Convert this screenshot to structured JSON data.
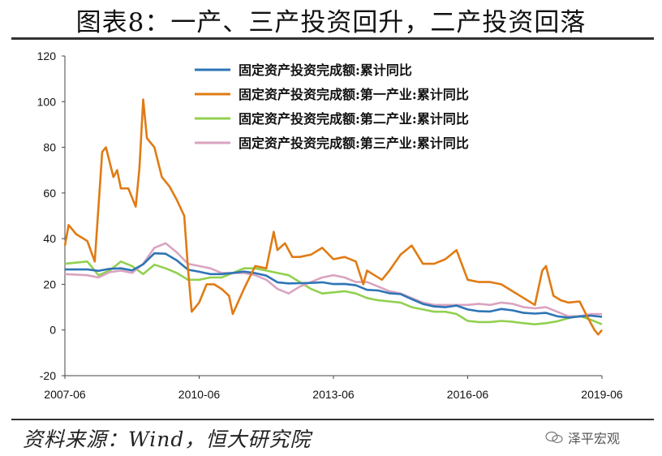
{
  "title": "图表8：一产、三产投资回升，二产投资回落",
  "source": "资料来源：Wind，恒大研究院",
  "watermark": "泽平宏观",
  "chart_data": {
    "type": "line",
    "x_ticks": [
      "2007-06",
      "2010-06",
      "2013-06",
      "2016-06",
      "2019-06"
    ],
    "ylim": [
      -20,
      120
    ],
    "y_ticks": [
      -20,
      0,
      20,
      40,
      60,
      80,
      100,
      120
    ],
    "grid": false,
    "legend_position": "top-right",
    "series": [
      {
        "name": "固定资产投资完成额:累计同比",
        "color": "#2E75B6",
        "points": [
          [
            "2007-06",
            26.5
          ],
          [
            "2007-12",
            26.5
          ],
          [
            "2008-03",
            25.9
          ],
          [
            "2008-06",
            26.8
          ],
          [
            "2008-09",
            27.0
          ],
          [
            "2008-12",
            26.1
          ],
          [
            "2009-03",
            28.8
          ],
          [
            "2009-06",
            33.6
          ],
          [
            "2009-09",
            33.4
          ],
          [
            "2009-12",
            30.5
          ],
          [
            "2010-03",
            26.4
          ],
          [
            "2010-06",
            25.5
          ],
          [
            "2010-09",
            24.5
          ],
          [
            "2010-12",
            24.5
          ],
          [
            "2011-03",
            25.0
          ],
          [
            "2011-06",
            25.6
          ],
          [
            "2011-09",
            24.9
          ],
          [
            "2011-12",
            23.8
          ],
          [
            "2012-03",
            20.9
          ],
          [
            "2012-06",
            20.4
          ],
          [
            "2012-09",
            20.5
          ],
          [
            "2012-12",
            20.6
          ],
          [
            "2013-03",
            20.9
          ],
          [
            "2013-06",
            20.1
          ],
          [
            "2013-09",
            20.2
          ],
          [
            "2013-12",
            19.6
          ],
          [
            "2014-03",
            17.6
          ],
          [
            "2014-06",
            17.3
          ],
          [
            "2014-09",
            16.1
          ],
          [
            "2014-12",
            15.7
          ],
          [
            "2015-03",
            13.5
          ],
          [
            "2015-06",
            11.4
          ],
          [
            "2015-09",
            10.3
          ],
          [
            "2015-12",
            10.0
          ],
          [
            "2016-03",
            10.7
          ],
          [
            "2016-06",
            9.0
          ],
          [
            "2016-09",
            8.2
          ],
          [
            "2016-12",
            8.1
          ],
          [
            "2017-03",
            9.2
          ],
          [
            "2017-06",
            8.6
          ],
          [
            "2017-09",
            7.5
          ],
          [
            "2017-12",
            7.2
          ],
          [
            "2018-03",
            7.5
          ],
          [
            "2018-06",
            6.0
          ],
          [
            "2018-09",
            5.4
          ],
          [
            "2018-12",
            5.9
          ],
          [
            "2019-03",
            6.3
          ],
          [
            "2019-06",
            5.8
          ]
        ]
      },
      {
        "name": "固定资产投资完成额:第一产业:累计同比",
        "color": "#E07B14",
        "points": [
          [
            "2007-06",
            37
          ],
          [
            "2007-07",
            46
          ],
          [
            "2007-09",
            42
          ],
          [
            "2007-12",
            39
          ],
          [
            "2008-02",
            30
          ],
          [
            "2008-04",
            78
          ],
          [
            "2008-05",
            80
          ],
          [
            "2008-07",
            67
          ],
          [
            "2008-08",
            70
          ],
          [
            "2008-09",
            62
          ],
          [
            "2008-11",
            62
          ],
          [
            "2009-01",
            54
          ],
          [
            "2009-02",
            71
          ],
          [
            "2009-03",
            101
          ],
          [
            "2009-04",
            84
          ],
          [
            "2009-06",
            80
          ],
          [
            "2009-08",
            67
          ],
          [
            "2009-10",
            63
          ],
          [
            "2009-12",
            57
          ],
          [
            "2010-02",
            50
          ],
          [
            "2010-03",
            27
          ],
          [
            "2010-04",
            8
          ],
          [
            "2010-06",
            12
          ],
          [
            "2010-08",
            20
          ],
          [
            "2010-10",
            20
          ],
          [
            "2010-12",
            18
          ],
          [
            "2011-02",
            15
          ],
          [
            "2011-03",
            7
          ],
          [
            "2011-06",
            18
          ],
          [
            "2011-09",
            28
          ],
          [
            "2011-12",
            27
          ],
          [
            "2012-02",
            43
          ],
          [
            "2012-03",
            35
          ],
          [
            "2012-05",
            38
          ],
          [
            "2012-07",
            32
          ],
          [
            "2012-09",
            32
          ],
          [
            "2012-12",
            33
          ],
          [
            "2013-03",
            36
          ],
          [
            "2013-06",
            31
          ],
          [
            "2013-09",
            32
          ],
          [
            "2013-12",
            30
          ],
          [
            "2014-02",
            20
          ],
          [
            "2014-03",
            26
          ],
          [
            "2014-05",
            24
          ],
          [
            "2014-07",
            22
          ],
          [
            "2014-09",
            26
          ],
          [
            "2014-12",
            33
          ],
          [
            "2015-03",
            37
          ],
          [
            "2015-06",
            29
          ],
          [
            "2015-09",
            29
          ],
          [
            "2015-12",
            31
          ],
          [
            "2016-03",
            35
          ],
          [
            "2016-06",
            22
          ],
          [
            "2016-09",
            21
          ],
          [
            "2016-12",
            21
          ],
          [
            "2017-03",
            20
          ],
          [
            "2017-06",
            17
          ],
          [
            "2017-09",
            14
          ],
          [
            "2017-12",
            11
          ],
          [
            "2018-02",
            26
          ],
          [
            "2018-03",
            28
          ],
          [
            "2018-05",
            15
          ],
          [
            "2018-07",
            13
          ],
          [
            "2018-09",
            12
          ],
          [
            "2018-12",
            12.5
          ],
          [
            "2019-02",
            6
          ],
          [
            "2019-04",
            0
          ],
          [
            "2019-05",
            -2
          ],
          [
            "2019-06",
            0
          ]
        ]
      },
      {
        "name": "固定资产投资完成额:第二产业:累计同比",
        "color": "#92D050",
        "points": [
          [
            "2007-06",
            29
          ],
          [
            "2007-12",
            30
          ],
          [
            "2008-03",
            24
          ],
          [
            "2008-06",
            26
          ],
          [
            "2008-09",
            30
          ],
          [
            "2008-12",
            28
          ],
          [
            "2009-03",
            24.5
          ],
          [
            "2009-06",
            28.6
          ],
          [
            "2009-09",
            27
          ],
          [
            "2009-12",
            25
          ],
          [
            "2010-03",
            22
          ],
          [
            "2010-06",
            22
          ],
          [
            "2010-09",
            23
          ],
          [
            "2010-12",
            23
          ],
          [
            "2011-03",
            25
          ],
          [
            "2011-06",
            27
          ],
          [
            "2011-09",
            27
          ],
          [
            "2011-12",
            26
          ],
          [
            "2012-03",
            25
          ],
          [
            "2012-06",
            24
          ],
          [
            "2012-09",
            21
          ],
          [
            "2012-12",
            18
          ],
          [
            "2013-03",
            16
          ],
          [
            "2013-06",
            16.5
          ],
          [
            "2013-09",
            17
          ],
          [
            "2013-12",
            16
          ],
          [
            "2014-03",
            14
          ],
          [
            "2014-06",
            13
          ],
          [
            "2014-09",
            12.5
          ],
          [
            "2014-12",
            12
          ],
          [
            "2015-03",
            10
          ],
          [
            "2015-06",
            9
          ],
          [
            "2015-09",
            8
          ],
          [
            "2015-12",
            8
          ],
          [
            "2016-03",
            7
          ],
          [
            "2016-06",
            4
          ],
          [
            "2016-09",
            3.5
          ],
          [
            "2016-12",
            3.5
          ],
          [
            "2017-03",
            4
          ],
          [
            "2017-06",
            3.6
          ],
          [
            "2017-09",
            3
          ],
          [
            "2017-12",
            2.5
          ],
          [
            "2018-03",
            3
          ],
          [
            "2018-06",
            3.8
          ],
          [
            "2018-09",
            5.2
          ],
          [
            "2018-12",
            6.2
          ],
          [
            "2019-03",
            4.5
          ],
          [
            "2019-06",
            2.5
          ]
        ]
      },
      {
        "name": "固定资产投资完成额:第三产业:累计同比",
        "color": "#D9A4C0",
        "points": [
          [
            "2007-06",
            24.5
          ],
          [
            "2007-12",
            24
          ],
          [
            "2008-03",
            23
          ],
          [
            "2008-06",
            25.3
          ],
          [
            "2008-09",
            26
          ],
          [
            "2008-12",
            25
          ],
          [
            "2009-03",
            29
          ],
          [
            "2009-06",
            36
          ],
          [
            "2009-09",
            38
          ],
          [
            "2009-12",
            34
          ],
          [
            "2010-03",
            29
          ],
          [
            "2010-06",
            28
          ],
          [
            "2010-09",
            27
          ],
          [
            "2010-12",
            25
          ],
          [
            "2011-03",
            25
          ],
          [
            "2011-06",
            25
          ],
          [
            "2011-09",
            24
          ],
          [
            "2011-12",
            22
          ],
          [
            "2012-03",
            18
          ],
          [
            "2012-06",
            16
          ],
          [
            "2012-09",
            19
          ],
          [
            "2012-12",
            21
          ],
          [
            "2013-03",
            23
          ],
          [
            "2013-06",
            24
          ],
          [
            "2013-09",
            23
          ],
          [
            "2013-12",
            21
          ],
          [
            "2014-03",
            21
          ],
          [
            "2014-06",
            19
          ],
          [
            "2014-09",
            17
          ],
          [
            "2014-12",
            16
          ],
          [
            "2015-03",
            14
          ],
          [
            "2015-06",
            12
          ],
          [
            "2015-09",
            11
          ],
          [
            "2015-12",
            11
          ],
          [
            "2016-03",
            11
          ],
          [
            "2016-06",
            11
          ],
          [
            "2016-09",
            11.5
          ],
          [
            "2016-12",
            11
          ],
          [
            "2017-03",
            12
          ],
          [
            "2017-06",
            11.5
          ],
          [
            "2017-09",
            10
          ],
          [
            "2017-12",
            9.5
          ],
          [
            "2018-03",
            10
          ],
          [
            "2018-06",
            8
          ],
          [
            "2018-09",
            6
          ],
          [
            "2018-12",
            6
          ],
          [
            "2019-03",
            7
          ],
          [
            "2019-06",
            7
          ]
        ]
      }
    ]
  }
}
